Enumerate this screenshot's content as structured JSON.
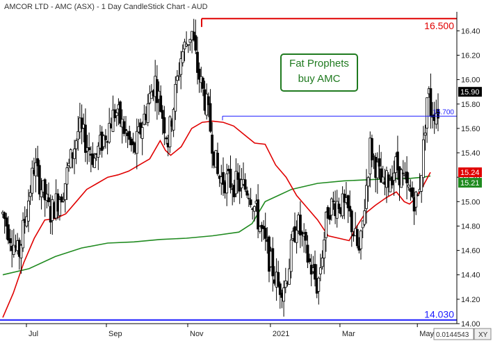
{
  "header": {
    "title": "AMCOR LTD - AMC (ASX) - 1 Day CandleStick Chart - AUD"
  },
  "annotation": {
    "line1": "Fat Prophets",
    "line2": "buy AMC"
  },
  "reference_lines": [
    {
      "label": "16.500",
      "value": 16.5,
      "color": "#e00000",
      "style": "big",
      "x_start_month": "Nov"
    },
    {
      "label": "15.700",
      "value": 15.7,
      "color": "#1a1aff",
      "style": "small",
      "x_start_month": "Nov"
    },
    {
      "label": "14.030",
      "value": 14.03,
      "color": "#1a1aff",
      "style": "big",
      "x_start_month": ""
    }
  ],
  "badges": [
    {
      "label": "15.90",
      "value": 15.9,
      "bg": "#000000"
    },
    {
      "label": "15.24",
      "value": 15.24,
      "bg": "#e00000"
    },
    {
      "label": "15.21",
      "value": 15.21,
      "bg": "#1f8a1f"
    }
  ],
  "footer": {
    "crosshair_value": "0.0144543",
    "xy_button": "XY"
  },
  "colors": {
    "candle": "#000000",
    "ma_short": "#e00000",
    "ma_long": "#1f8a1f",
    "annotation_border": "#1f7a1f",
    "axis": "#000000"
  },
  "chart_data": {
    "type": "candlestick",
    "title": "AMCOR LTD - AMC (ASX) - 1 Day CandleStick Chart - AUD",
    "ylim": [
      14.0,
      16.55
    ],
    "y_ticks": [
      14.0,
      14.2,
      14.4,
      14.6,
      14.8,
      15.0,
      15.2,
      15.4,
      15.6,
      15.8,
      16.0,
      16.2,
      16.4
    ],
    "y_tick_labels": [
      "14.00",
      "14.20",
      "14.40",
      "14.60",
      "14.80",
      "15.00",
      "15.20",
      "15.40",
      "15.60",
      "15.80",
      "16.00",
      "16.20",
      "16.40"
    ],
    "x_tick_labels": [
      "Jul",
      "Sep",
      "Nov",
      "2021",
      "Mar",
      "May"
    ],
    "x_tick_days": [
      18,
      79,
      141,
      204,
      257,
      316
    ],
    "total_days": 344,
    "price_path_days": [
      0,
      12,
      24,
      36,
      46,
      58,
      70,
      86,
      100,
      116,
      126,
      136,
      144,
      148,
      156,
      164,
      176,
      188,
      196,
      204,
      210,
      216,
      224,
      232,
      240,
      248,
      256,
      264,
      272,
      280,
      290,
      300,
      308,
      316,
      320,
      324,
      326,
      332
    ],
    "price_path_values": [
      14.9,
      14.55,
      15.3,
      14.9,
      15.1,
      15.6,
      15.35,
      15.75,
      15.4,
      16.0,
      15.5,
      16.2,
      16.4,
      16.1,
      15.75,
      15.2,
      15.15,
      15.1,
      14.8,
      14.5,
      14.3,
      14.35,
      14.85,
      14.55,
      14.3,
      14.95,
      15.0,
      14.9,
      14.55,
      15.45,
      15.1,
      15.3,
      15.1,
      15.0,
      15.35,
      15.95,
      15.75,
      15.75
    ],
    "ma_short_days": [
      0,
      8,
      16,
      24,
      32,
      40,
      48,
      56,
      64,
      72,
      80,
      88,
      96,
      104,
      112,
      120,
      124,
      128,
      136,
      144,
      152,
      160,
      168,
      176,
      184,
      192,
      200,
      208,
      216,
      224,
      232,
      240,
      248,
      256,
      264,
      270,
      276,
      284,
      292,
      300,
      306,
      310,
      314,
      320,
      326
    ],
    "ma_short_values": [
      14.05,
      14.25,
      14.5,
      14.7,
      14.85,
      14.86,
      14.9,
      15.0,
      15.1,
      15.15,
      15.2,
      15.22,
      15.25,
      15.3,
      15.35,
      15.5,
      15.42,
      15.38,
      15.45,
      15.6,
      15.65,
      15.66,
      15.65,
      15.62,
      15.55,
      15.48,
      15.47,
      15.3,
      15.2,
      15.05,
      14.95,
      14.85,
      14.72,
      14.7,
      14.68,
      14.8,
      14.9,
      14.97,
      15.03,
      15.08,
      15.0,
      14.98,
      15.02,
      15.12,
      15.24
    ],
    "ma_long_days": [
      0,
      20,
      40,
      60,
      80,
      100,
      120,
      140,
      160,
      180,
      190,
      200,
      210,
      220,
      240,
      260,
      280,
      300,
      310,
      320,
      326
    ],
    "ma_long_values": [
      14.4,
      14.45,
      14.55,
      14.62,
      14.66,
      14.67,
      14.69,
      14.7,
      14.72,
      14.75,
      14.82,
      15.0,
      15.05,
      15.1,
      15.15,
      15.17,
      15.18,
      15.19,
      15.19,
      15.2,
      15.21
    ],
    "last_close": 15.9,
    "ma_short_last": 15.24,
    "ma_long_last": 15.21
  }
}
